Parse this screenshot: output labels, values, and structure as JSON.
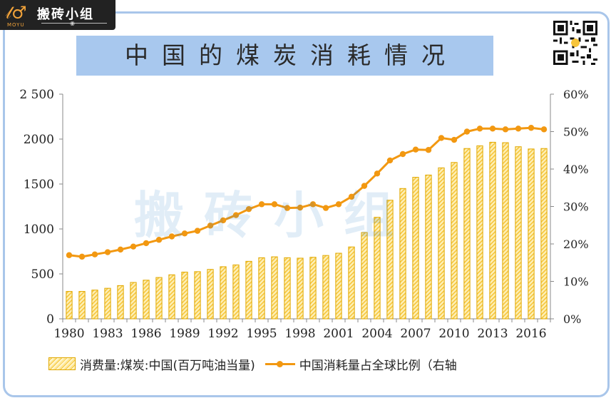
{
  "branding": {
    "logo_text": "搬砖小组",
    "logo_subtext": "MOYU",
    "watermark": "搬砖小组"
  },
  "title": "中国的煤炭消耗情况",
  "colors": {
    "bar_fill": "#f7c53b",
    "bar_border": "#e0a800",
    "line": "#f29811",
    "title_bg": "#a8c8ee",
    "frame": "#a9c6ea",
    "axis": "#888888"
  },
  "chart_data": {
    "type": "bar+line",
    "title": "中国的煤炭消耗情况",
    "x": [
      1980,
      1981,
      1982,
      1983,
      1984,
      1985,
      1986,
      1987,
      1988,
      1989,
      1990,
      1991,
      1992,
      1993,
      1994,
      1995,
      1996,
      1997,
      1998,
      1999,
      2000,
      2001,
      2002,
      2003,
      2004,
      2005,
      2006,
      2007,
      2008,
      2009,
      2010,
      2011,
      2012,
      2013,
      2014,
      2015,
      2016,
      2017
    ],
    "x_tick_labels": [
      "1980",
      "1983",
      "1986",
      "1989",
      "1992",
      "1995",
      "1998",
      "2001",
      "2004",
      "2007",
      "2010",
      "2013",
      "2016"
    ],
    "series": [
      {
        "name": "消费量:煤炭:中国(百万吨油当量)",
        "type": "bar",
        "axis": "left",
        "values": [
          305,
          305,
          320,
          340,
          370,
          405,
          430,
          460,
          490,
          520,
          525,
          550,
          580,
          600,
          640,
          680,
          690,
          680,
          675,
          685,
          705,
          730,
          800,
          960,
          1130,
          1320,
          1450,
          1575,
          1600,
          1680,
          1740,
          1895,
          1925,
          1965,
          1960,
          1915,
          1890,
          1895
        ]
      },
      {
        "name": "中国消耗量占全球比例（右轴",
        "type": "line",
        "axis": "right",
        "values": [
          17.0,
          16.6,
          17.2,
          17.8,
          18.5,
          19.3,
          20.2,
          21.1,
          22.0,
          22.8,
          23.5,
          24.9,
          26.3,
          27.7,
          29.3,
          30.6,
          30.6,
          29.6,
          29.7,
          30.6,
          29.6,
          30.6,
          32.6,
          35.5,
          38.8,
          42.3,
          44.0,
          45.2,
          45.1,
          48.3,
          47.8,
          50.0,
          50.8,
          50.8,
          50.6,
          50.8,
          51.0,
          50.6
        ]
      }
    ],
    "y_left": {
      "ylim": [
        0,
        2500
      ],
      "ticks": [
        0,
        500,
        1000,
        1500,
        2000,
        2500
      ],
      "tick_labels": [
        "0",
        "500",
        "1000",
        "1500",
        "2000",
        "2 500"
      ]
    },
    "y_right": {
      "ylim": [
        0,
        60
      ],
      "ticks": [
        0,
        10,
        20,
        30,
        40,
        50,
        60
      ],
      "tick_labels": [
        "0%",
        "10%",
        "20%",
        "30%",
        "40%",
        "50%",
        "60%"
      ]
    },
    "legend": {
      "placement": "bottom",
      "entries": [
        "消费量:煤炭:中国(百万吨油当量)",
        "中国消耗量占全球比例（右轴"
      ]
    }
  }
}
